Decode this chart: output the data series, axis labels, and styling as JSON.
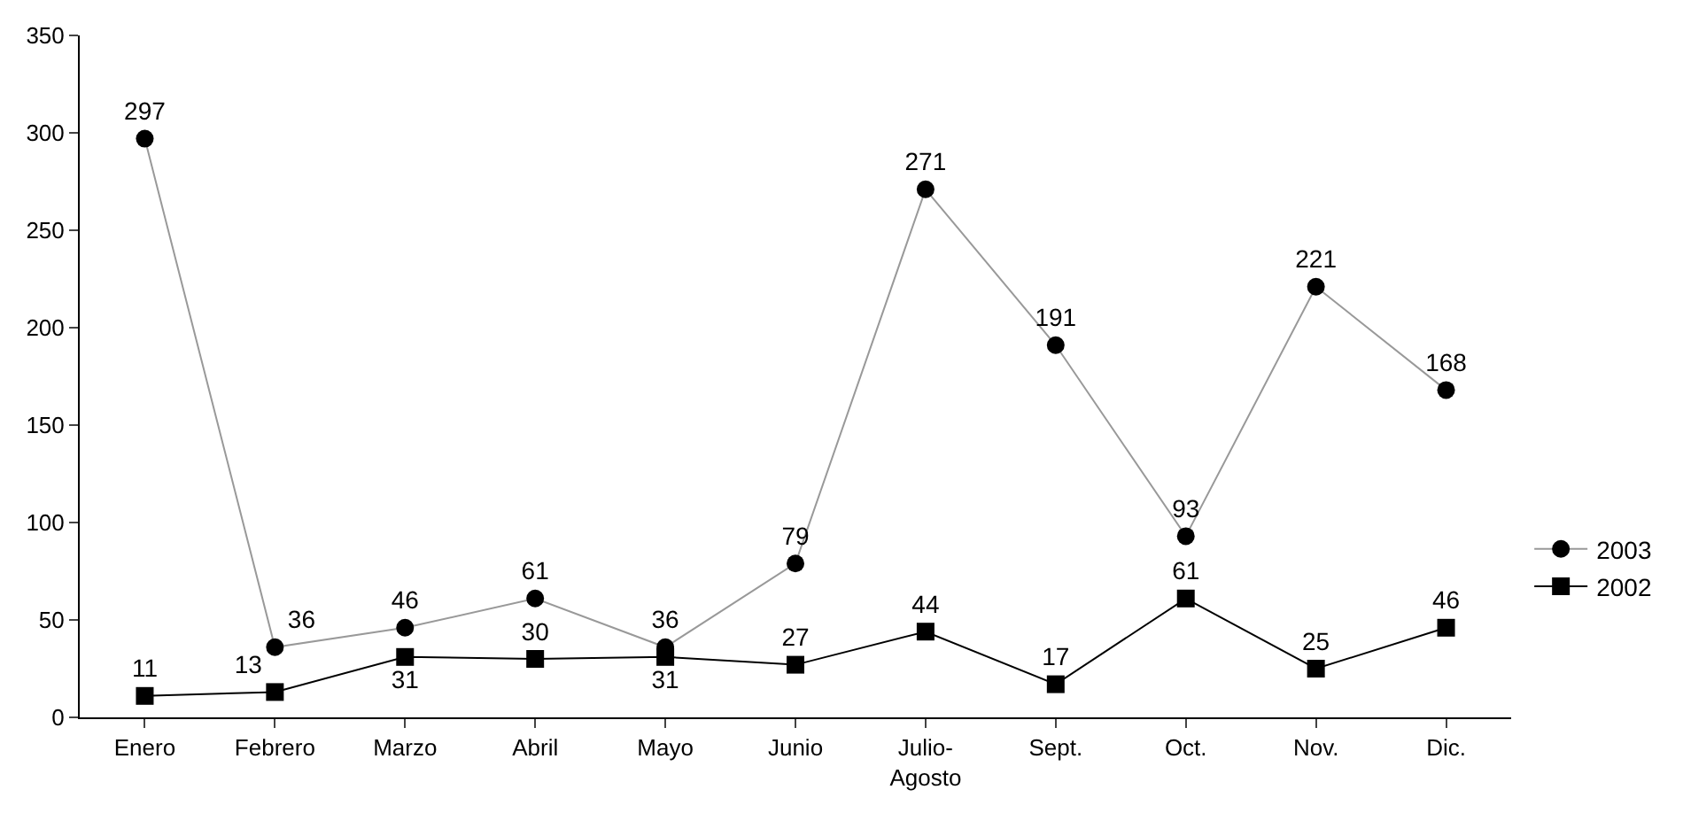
{
  "chart_data": {
    "type": "line",
    "categories": [
      "Enero",
      "Febrero",
      "Marzo",
      "Abril",
      "Mayo",
      "Junio",
      "Julio-\nAgosto",
      "Sept.",
      "Oct.",
      "Nov.",
      "Dic."
    ],
    "series": [
      {
        "name": "2003",
        "color": "#999999",
        "marker": "circle",
        "values": [
          297,
          36,
          46,
          61,
          36,
          79,
          271,
          191,
          93,
          221,
          168
        ]
      },
      {
        "name": "2002",
        "color": "#000000",
        "marker": "square",
        "values": [
          11,
          13,
          31,
          30,
          31,
          27,
          44,
          17,
          61,
          25,
          46
        ]
      }
    ],
    "ylim": [
      0,
      350
    ],
    "yticks": [
      0,
      50,
      100,
      150,
      200,
      250,
      300,
      350
    ],
    "grid": false,
    "legend": "bottom right",
    "data_labels": true
  }
}
